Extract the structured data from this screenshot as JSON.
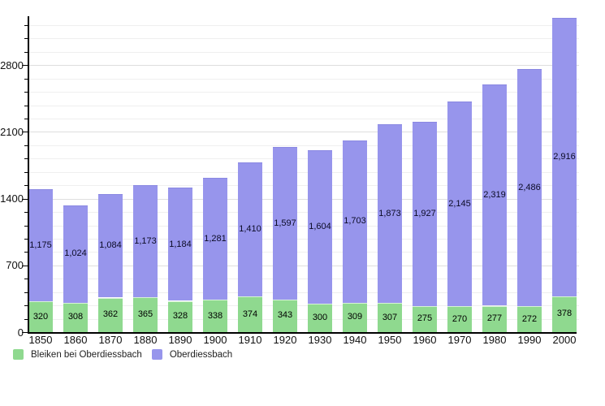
{
  "chart_data": {
    "type": "bar",
    "stacked": true,
    "title": "",
    "xlabel": "",
    "ylabel": "",
    "categories": [
      "1850",
      "1860",
      "1870",
      "1880",
      "1890",
      "1900",
      "1910",
      "1920",
      "1930",
      "1940",
      "1950",
      "1960",
      "1970",
      "1980",
      "1990",
      "2000"
    ],
    "series": [
      {
        "name": "Bleiken bei Oberdiessbach",
        "color": "#8FD98F",
        "label_color": "#000000",
        "values": [
          320,
          308,
          362,
          365,
          328,
          338,
          374,
          343,
          300,
          309,
          307,
          275,
          270,
          277,
          272,
          378
        ],
        "labels": [
          "320",
          "308",
          "362",
          "365",
          "328",
          "338",
          "374",
          "343",
          "300",
          "309",
          "307",
          "275",
          "270",
          "277",
          "272",
          "378"
        ]
      },
      {
        "name": "Oberdiessbach",
        "color": "#9795EC",
        "label_color": "#0b0b26",
        "values": [
          1175,
          1024,
          1084,
          1173,
          1184,
          1281,
          1410,
          1597,
          1604,
          1703,
          1873,
          1927,
          2145,
          2319,
          2486,
          2916
        ],
        "labels": [
          "1,175",
          "1,024",
          "1,084",
          "1,173",
          "1,184",
          "1,281",
          "1,410",
          "1,597",
          "1,604",
          "1,703",
          "1,873",
          "1,927",
          "2,145",
          "2,319",
          "2,486",
          "2,916"
        ]
      }
    ],
    "y_axis": {
      "tick_labels": [
        "0",
        "700",
        "1400",
        "2100",
        "2800"
      ],
      "major_step": 700,
      "minor_step": 140,
      "min": 0,
      "max": 3320
    },
    "grid": true,
    "legend_position": "bottom-left"
  }
}
